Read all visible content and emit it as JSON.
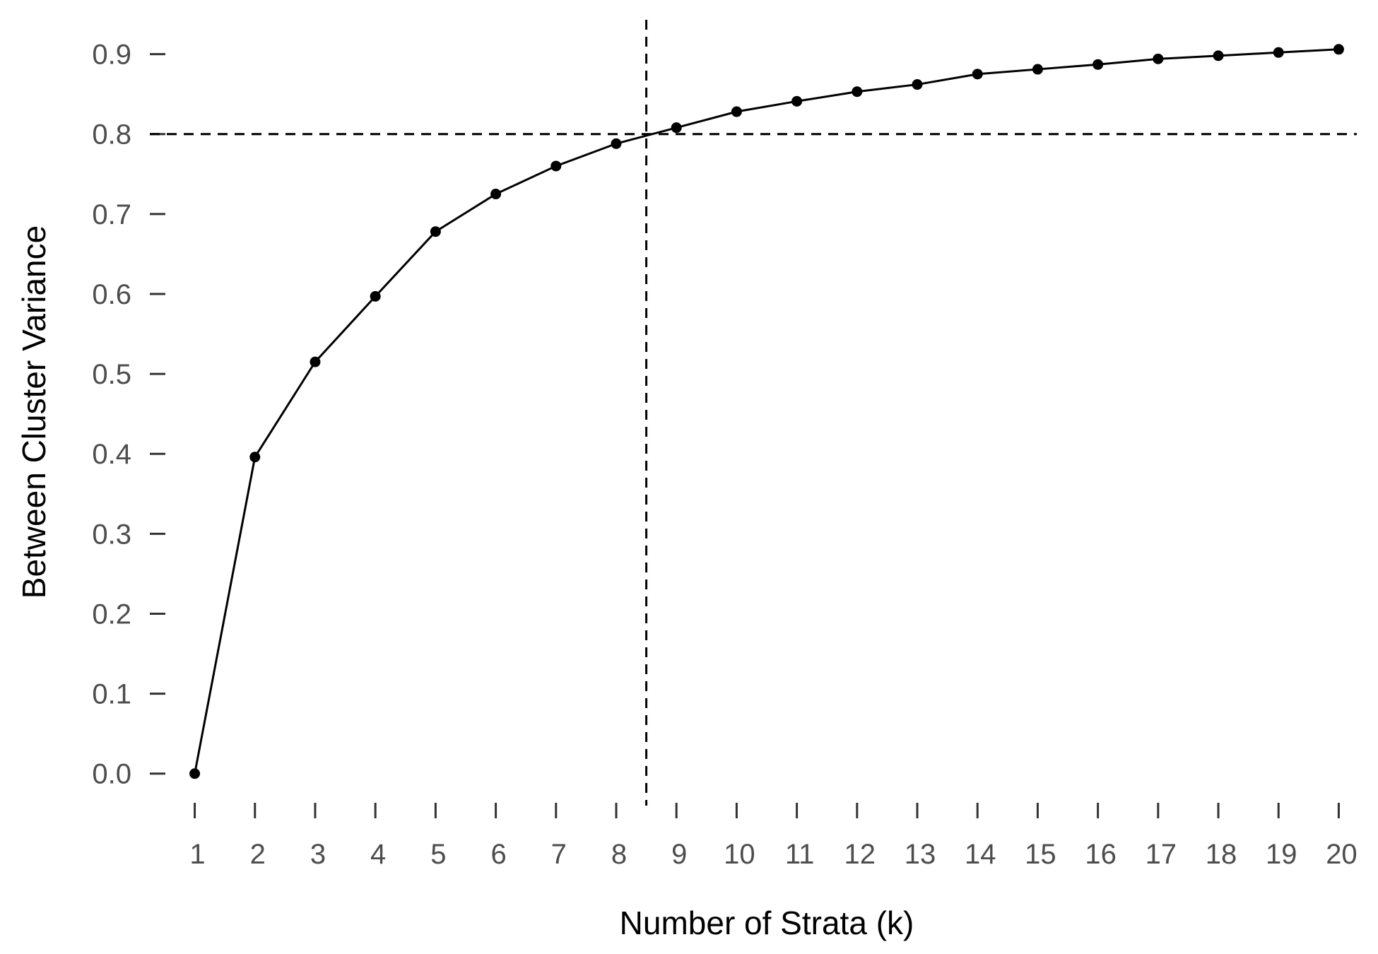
{
  "chart_data": {
    "type": "line",
    "title": "",
    "xlabel": "Number of Strata (k)",
    "ylabel": "Between Cluster Variance",
    "x": [
      1,
      2,
      3,
      4,
      5,
      6,
      7,
      8,
      9,
      10,
      11,
      12,
      13,
      14,
      15,
      16,
      17,
      18,
      19,
      20
    ],
    "x_tick_labels": [
      "1",
      "2",
      "3",
      "4",
      "5",
      "6",
      "7",
      "8",
      "9",
      "10",
      "11",
      "12",
      "13",
      "14",
      "15",
      "16",
      "17",
      "18",
      "19",
      "20"
    ],
    "series": [
      {
        "values": [
          0.0,
          0.396,
          0.515,
          0.597,
          0.678,
          0.725,
          0.76,
          0.788,
          0.808,
          0.828,
          0.841,
          0.853,
          0.862,
          0.875,
          0.881,
          0.887,
          0.894,
          0.898,
          0.902,
          0.906
        ],
        "color": "#000000",
        "markers": true
      }
    ],
    "y_ticks": [
      0.0,
      0.1,
      0.2,
      0.3,
      0.4,
      0.5,
      0.6,
      0.7,
      0.8,
      0.9
    ],
    "y_tick_labels": [
      "0.0",
      "0.1",
      "0.2",
      "0.3",
      "0.4",
      "0.5",
      "0.6",
      "0.7",
      "0.8",
      "0.9"
    ],
    "xlim": [
      0.7,
      20.3
    ],
    "ylim": [
      -0.04,
      0.95
    ],
    "reference_lines": [
      {
        "orientation": "horizontal",
        "value": 0.8,
        "style": "dashed",
        "color": "#000000"
      },
      {
        "orientation": "vertical",
        "value": 8.5,
        "style": "dashed",
        "color": "#000000"
      }
    ],
    "grid": false,
    "legend": "none"
  }
}
